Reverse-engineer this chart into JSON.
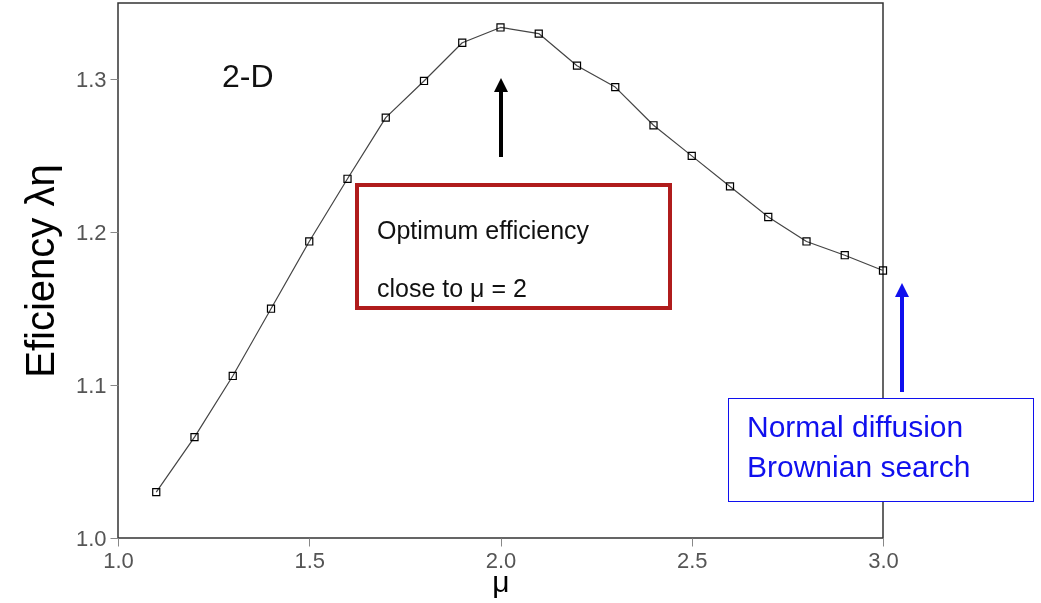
{
  "chart_data": {
    "type": "line",
    "xlabel": "μ",
    "ylabel": "Eficiency λη",
    "x": [
      1.1,
      1.2,
      1.3,
      1.4,
      1.5,
      1.6,
      1.7,
      1.8,
      1.9,
      2.0,
      2.1,
      2.2,
      2.3,
      2.4,
      2.5,
      2.6,
      2.7,
      2.8,
      2.9,
      3.0
    ],
    "series": [
      {
        "color": "#444444",
        "values": [
          1.03,
          1.066,
          1.106,
          1.15,
          1.194,
          1.235,
          1.275,
          1.299,
          1.324,
          1.334,
          1.33,
          1.309,
          1.295,
          1.27,
          1.25,
          1.23,
          1.21,
          1.194,
          1.185,
          1.175
        ]
      }
    ],
    "xlim": [
      1.0,
      3.0
    ],
    "xticks": [
      {
        "value": 1,
        "label": "1.0"
      },
      1.5,
      {
        "value": 2,
        "label": "2.0"
      },
      2.5,
      {
        "value": 3,
        "label": "3.0"
      }
    ],
    "ylim": [
      1.0,
      1.35
    ],
    "yticks": [
      {
        "value": 1,
        "label": "1.0"
      },
      1.1,
      1.2,
      1.3
    ],
    "marker": "square",
    "grid": false,
    "annotations": [
      "2-D",
      "Optimum efficiency close to μ = 2",
      "Normal diffusion Brownian search"
    ]
  }
}
